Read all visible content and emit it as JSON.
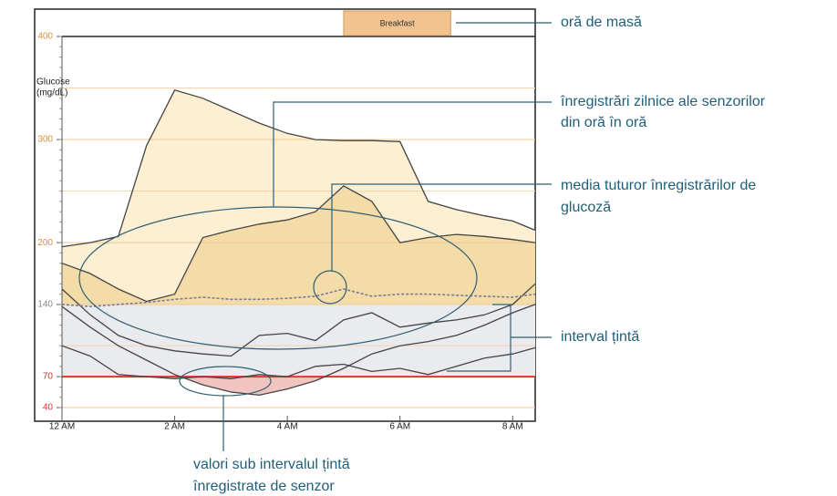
{
  "chart_data": {
    "type": "line",
    "ylabel": [
      "Glucose",
      "(mg/dL)"
    ],
    "x": [
      0,
      0.5,
      1,
      1.5,
      2,
      2.5,
      3,
      3.5,
      4,
      4.5,
      5,
      5.5,
      6,
      6.5,
      7,
      7.5,
      8,
      8.4
    ],
    "xlim": [
      0,
      8.4
    ],
    "xticks": [
      {
        "value": 0,
        "label": "12 AM"
      },
      {
        "value": 2,
        "label": "2 AM"
      },
      {
        "value": 4,
        "label": "4 AM"
      },
      {
        "value": 6,
        "label": "6 AM"
      },
      {
        "value": 8,
        "label": "8 AM"
      }
    ],
    "ylim": [
      40,
      400
    ],
    "yticks": [
      40,
      70,
      140,
      200,
      300,
      400
    ],
    "ytick_colors": [
      "#e03030",
      "#e03030",
      "#888888",
      "#e0903a",
      "#e0903a",
      "#e0903a"
    ],
    "minor_grid": [
      100,
      250,
      350
    ],
    "target_range": [
      70,
      140
    ],
    "meal": {
      "label": "Breakfast",
      "start": 5,
      "end": 6.9
    },
    "series": [
      {
        "color": "#444444",
        "fill": "#fcefd2",
        "values": [
          196,
          200,
          206,
          294,
          348,
          340,
          328,
          316,
          306,
          300,
          299,
          299,
          298,
          240,
          232,
          226,
          221,
          212
        ]
      },
      {
        "color": "#444444",
        "fill": "#f4dca8",
        "values": [
          180,
          170,
          155,
          143,
          150,
          205,
          212,
          218,
          222,
          230,
          255,
          240,
          200,
          205,
          208,
          206,
          203,
          200
        ]
      },
      {
        "color": "#444444",
        "values": [
          155,
          130,
          110,
          100,
          95,
          92,
          90,
          110,
          112,
          105,
          125,
          132,
          118,
          122,
          125,
          130,
          140,
          160
        ]
      },
      {
        "color": "#444444",
        "below_fill": "#f2c4c0",
        "values": [
          138,
          118,
          100,
          86,
          72,
          62,
          55,
          52,
          58,
          66,
          78,
          92,
          100,
          104,
          110,
          120,
          132,
          140
        ]
      },
      {
        "color": "#444444",
        "values": [
          100,
          90,
          72,
          70,
          68,
          70,
          68,
          72,
          70,
          80,
          82,
          75,
          78,
          72,
          80,
          88,
          92,
          98
        ]
      },
      {
        "color": "#7a7a9a",
        "dashed": true,
        "values": [
          140,
          138,
          140,
          142,
          145,
          147,
          145,
          145,
          146,
          148,
          155,
          148,
          150,
          150,
          149,
          148,
          147,
          150
        ]
      }
    ],
    "annotations": [
      [
        "oră de masă"
      ],
      [
        "înregistrări zilnice ale senzorilor",
        "din oră în oră"
      ],
      [
        "media tuturor înregistrărilor de",
        "glucoză"
      ],
      [
        "interval țintă"
      ],
      [
        "valori sub intervalul țintă",
        "înregistrate de senzor"
      ]
    ]
  }
}
